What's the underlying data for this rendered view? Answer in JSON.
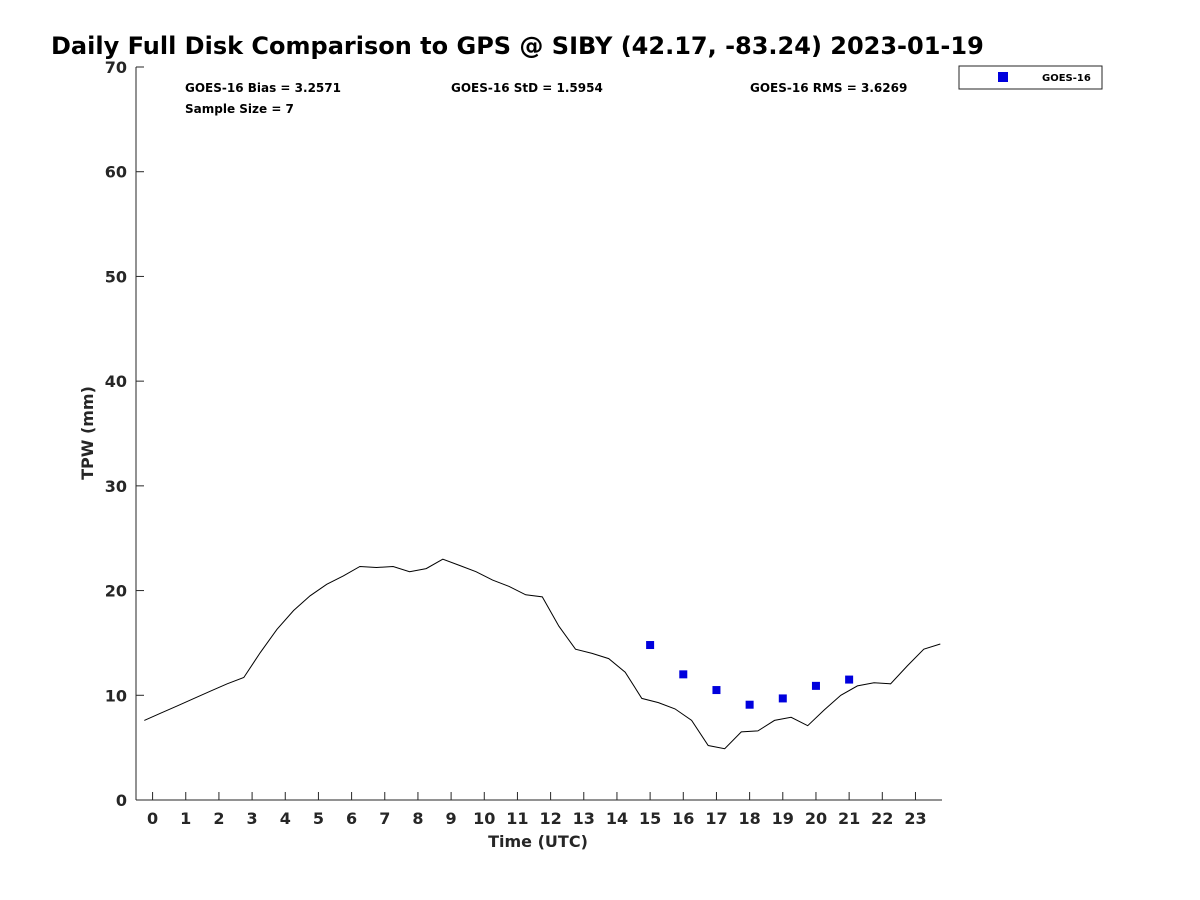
{
  "chart_data": {
    "type": "line",
    "title": "Daily Full Disk Comparison to GPS @ SIBY (42.17, -83.24) 2023-01-19",
    "xlabel": "Time (UTC)",
    "ylabel": "TPW (mm)",
    "xlim": [
      -0.5,
      23.8
    ],
    "ylim": [
      0,
      70
    ],
    "xticks": [
      "0",
      "1",
      "2",
      "3",
      "4",
      "5",
      "6",
      "7",
      "8",
      "9",
      "10",
      "11",
      "12",
      "13",
      "14",
      "15",
      "16",
      "17",
      "18",
      "19",
      "20",
      "21",
      "22",
      "23"
    ],
    "yticks": [
      "0",
      "10",
      "20",
      "30",
      "40",
      "50",
      "60",
      "70"
    ],
    "grid": false,
    "legend_position": "top-right",
    "stats": {
      "bias": "GOES-16 Bias = 3.2571",
      "std": "GOES-16 StD = 1.5954",
      "rms": "GOES-16 RMS = 3.6269",
      "sample": "Sample Size = 7"
    },
    "series": [
      {
        "color": "#000000",
        "style": "line",
        "x": [
          -0.25,
          0.25,
          0.75,
          1.25,
          1.75,
          2.25,
          2.75,
          3.25,
          3.75,
          4.25,
          4.75,
          5.25,
          5.75,
          6.25,
          6.75,
          7.25,
          7.75,
          8.25,
          8.75,
          9.25,
          9.75,
          10.25,
          10.75,
          11.25,
          11.75,
          12.25,
          12.75,
          13.25,
          13.75,
          14.25,
          14.75,
          15.25,
          15.75,
          16.25,
          16.75,
          17.25,
          17.75,
          18.25,
          18.75,
          19.25,
          19.75,
          20.25,
          20.75,
          21.25,
          21.75,
          22.25,
          22.75,
          23.25,
          23.75
        ],
        "y": [
          7.6,
          8.3,
          9.0,
          9.7,
          10.4,
          11.1,
          11.7,
          14.1,
          16.3,
          18.1,
          19.5,
          20.6,
          21.4,
          22.3,
          22.2,
          22.3,
          21.8,
          22.1,
          23.0,
          22.4,
          21.8,
          21.0,
          20.4,
          19.6,
          19.4,
          16.6,
          14.4,
          14.0,
          13.5,
          12.2,
          9.7,
          9.3,
          8.7,
          7.6,
          5.2,
          4.9,
          6.5,
          6.6,
          7.6,
          7.9,
          7.1,
          8.6,
          10.0,
          10.9,
          11.2,
          11.1,
          12.8,
          14.4,
          14.9
        ]
      },
      {
        "name": "GOES-16",
        "color": "#0000dd",
        "style": "square-marker",
        "x": [
          15,
          16,
          17,
          18,
          19,
          20,
          21
        ],
        "y": [
          14.8,
          12.0,
          10.5,
          9.1,
          9.7,
          10.9,
          11.5
        ]
      }
    ]
  }
}
